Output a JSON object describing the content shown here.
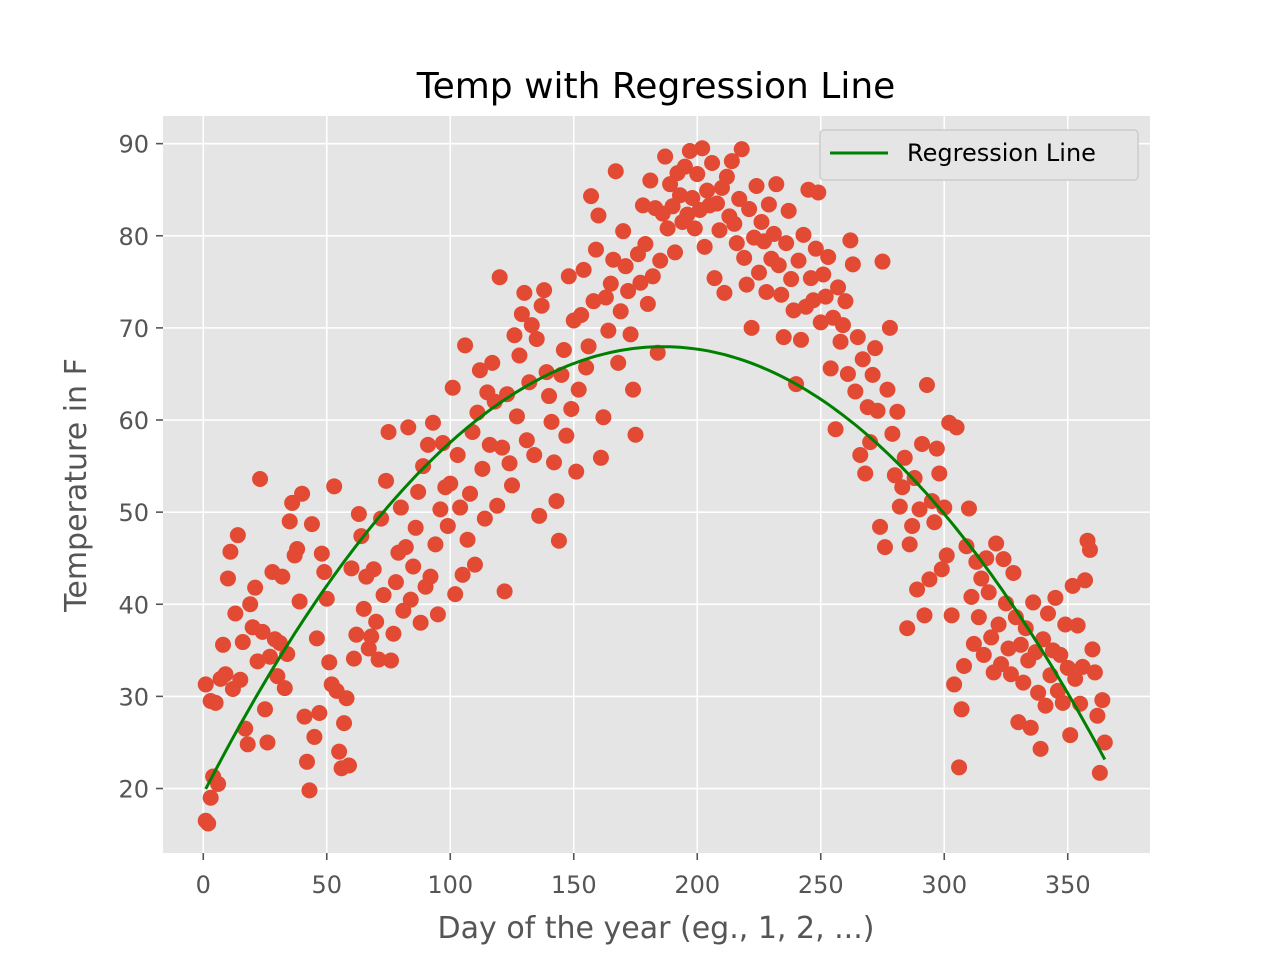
{
  "chart_data": {
    "type": "scatter",
    "title": "Temp with Regression Line",
    "xlabel": "Day of the year (eg., 1, 2, ...)",
    "ylabel": "Temperature in F",
    "xlim": [
      -16.3,
      383.3
    ],
    "ylim": [
      13.0,
      93.0
    ],
    "xticks": [
      0,
      50,
      100,
      150,
      200,
      250,
      300,
      350
    ],
    "yticks": [
      20,
      30,
      40,
      50,
      60,
      70,
      80,
      90
    ],
    "grid": true,
    "legend": {
      "position": "top-right",
      "entries": [
        "Regression Line"
      ]
    },
    "colors": {
      "points": "#E24A33",
      "regression": "#008000",
      "plot_background": "#E5E5E5",
      "grid": "#FFFFFF"
    },
    "regression": {
      "name": "Regression Line",
      "equation_coefficients": {
        "a": -0.0014006,
        "b": 0.52139,
        "c": 19.44
      },
      "x_range": [
        1,
        365
      ]
    },
    "scatter_points": [
      [
        1,
        31.3
      ],
      [
        1,
        16.5
      ],
      [
        2,
        16.2
      ],
      [
        3,
        29.5
      ],
      [
        3,
        19.0
      ],
      [
        4,
        21.3
      ],
      [
        5,
        29.3
      ],
      [
        6,
        20.5
      ],
      [
        7,
        31.9
      ],
      [
        8,
        35.6
      ],
      [
        9,
        32.4
      ],
      [
        10,
        42.8
      ],
      [
        11,
        45.7
      ],
      [
        12,
        30.8
      ],
      [
        13,
        39.0
      ],
      [
        14,
        47.5
      ],
      [
        15,
        31.8
      ],
      [
        16,
        35.9
      ],
      [
        17,
        26.5
      ],
      [
        18,
        24.8
      ],
      [
        19,
        40.0
      ],
      [
        20,
        37.5
      ],
      [
        21,
        41.8
      ],
      [
        22,
        33.8
      ],
      [
        23,
        53.6
      ],
      [
        24,
        37.0
      ],
      [
        25,
        28.6
      ],
      [
        26,
        25.0
      ],
      [
        27,
        34.3
      ],
      [
        28,
        43.5
      ],
      [
        29,
        36.2
      ],
      [
        30,
        32.2
      ],
      [
        31,
        35.8
      ],
      [
        32,
        43.0
      ],
      [
        33,
        30.9
      ],
      [
        34,
        34.6
      ],
      [
        35,
        49.0
      ],
      [
        36,
        51.0
      ],
      [
        37,
        45.3
      ],
      [
        38,
        46.0
      ],
      [
        39,
        40.3
      ],
      [
        40,
        52.0
      ],
      [
        41,
        27.8
      ],
      [
        42,
        22.9
      ],
      [
        43,
        19.8
      ],
      [
        44,
        48.7
      ],
      [
        45,
        25.6
      ],
      [
        46,
        36.3
      ],
      [
        47,
        28.2
      ],
      [
        48,
        45.5
      ],
      [
        49,
        43.5
      ],
      [
        50,
        40.6
      ],
      [
        51,
        33.7
      ],
      [
        52,
        31.3
      ],
      [
        53,
        52.8
      ],
      [
        54,
        30.6
      ],
      [
        55,
        24.0
      ],
      [
        56,
        22.2
      ],
      [
        57,
        27.1
      ],
      [
        58,
        29.8
      ],
      [
        59,
        22.5
      ],
      [
        60,
        43.9
      ],
      [
        61,
        34.1
      ],
      [
        62,
        36.7
      ],
      [
        63,
        49.8
      ],
      [
        64,
        47.4
      ],
      [
        65,
        39.5
      ],
      [
        66,
        43.0
      ],
      [
        67,
        35.2
      ],
      [
        68,
        36.5
      ],
      [
        69,
        43.8
      ],
      [
        70,
        38.1
      ],
      [
        71,
        34.0
      ],
      [
        72,
        49.3
      ],
      [
        73,
        41.0
      ],
      [
        74,
        53.4
      ],
      [
        75,
        58.7
      ],
      [
        76,
        33.9
      ],
      [
        77,
        36.8
      ],
      [
        78,
        42.4
      ],
      [
        79,
        45.6
      ],
      [
        80,
        50.5
      ],
      [
        81,
        39.3
      ],
      [
        82,
        46.2
      ],
      [
        83,
        59.2
      ],
      [
        84,
        40.5
      ],
      [
        85,
        44.1
      ],
      [
        86,
        48.3
      ],
      [
        87,
        52.2
      ],
      [
        88,
        38.0
      ],
      [
        89,
        55.0
      ],
      [
        90,
        41.9
      ],
      [
        91,
        57.3
      ],
      [
        92,
        43.0
      ],
      [
        93,
        59.7
      ],
      [
        94,
        46.5
      ],
      [
        95,
        38.9
      ],
      [
        96,
        50.3
      ],
      [
        97,
        57.5
      ],
      [
        98,
        52.7
      ],
      [
        99,
        48.5
      ],
      [
        100,
        53.1
      ],
      [
        101,
        63.5
      ],
      [
        102,
        41.1
      ],
      [
        103,
        56.2
      ],
      [
        104,
        50.5
      ],
      [
        105,
        43.2
      ],
      [
        106,
        68.1
      ],
      [
        107,
        47.0
      ],
      [
        108,
        52.0
      ],
      [
        109,
        58.7
      ],
      [
        110,
        44.3
      ],
      [
        111,
        60.8
      ],
      [
        112,
        65.4
      ],
      [
        113,
        54.7
      ],
      [
        114,
        49.3
      ],
      [
        115,
        63.0
      ],
      [
        116,
        57.3
      ],
      [
        117,
        66.2
      ],
      [
        118,
        62.0
      ],
      [
        119,
        50.7
      ],
      [
        120,
        75.5
      ],
      [
        121,
        57.0
      ],
      [
        122,
        41.4
      ],
      [
        123,
        62.8
      ],
      [
        124,
        55.3
      ],
      [
        125,
        52.9
      ],
      [
        126,
        69.2
      ],
      [
        127,
        60.4
      ],
      [
        128,
        67.0
      ],
      [
        129,
        71.5
      ],
      [
        130,
        73.8
      ],
      [
        131,
        57.8
      ],
      [
        132,
        64.1
      ],
      [
        133,
        70.3
      ],
      [
        134,
        56.2
      ],
      [
        135,
        68.8
      ],
      [
        136,
        49.6
      ],
      [
        137,
        72.4
      ],
      [
        138,
        74.1
      ],
      [
        139,
        65.2
      ],
      [
        140,
        62.6
      ],
      [
        141,
        59.8
      ],
      [
        142,
        55.4
      ],
      [
        143,
        51.2
      ],
      [
        144,
        46.9
      ],
      [
        145,
        64.9
      ],
      [
        146,
        67.6
      ],
      [
        147,
        58.3
      ],
      [
        148,
        75.6
      ],
      [
        149,
        61.2
      ],
      [
        150,
        70.8
      ],
      [
        151,
        54.4
      ],
      [
        152,
        63.3
      ],
      [
        153,
        71.4
      ],
      [
        154,
        76.3
      ],
      [
        155,
        65.7
      ],
      [
        156,
        68.0
      ],
      [
        157,
        84.3
      ],
      [
        158,
        72.9
      ],
      [
        159,
        78.5
      ],
      [
        160,
        82.2
      ],
      [
        161,
        55.9
      ],
      [
        162,
        60.3
      ],
      [
        163,
        73.3
      ],
      [
        164,
        69.7
      ],
      [
        165,
        74.8
      ],
      [
        166,
        77.4
      ],
      [
        167,
        87.0
      ],
      [
        168,
        66.2
      ],
      [
        169,
        71.8
      ],
      [
        170,
        80.5
      ],
      [
        171,
        76.7
      ],
      [
        172,
        74.0
      ],
      [
        173,
        69.3
      ],
      [
        174,
        63.3
      ],
      [
        175,
        58.4
      ],
      [
        176,
        78.0
      ],
      [
        177,
        74.9
      ],
      [
        178,
        83.3
      ],
      [
        179,
        79.1
      ],
      [
        180,
        72.6
      ],
      [
        181,
        86.0
      ],
      [
        182,
        75.6
      ],
      [
        183,
        83.0
      ],
      [
        184,
        67.3
      ],
      [
        185,
        77.3
      ],
      [
        186,
        82.4
      ],
      [
        187,
        88.6
      ],
      [
        188,
        80.8
      ],
      [
        189,
        85.6
      ],
      [
        190,
        83.2
      ],
      [
        191,
        78.2
      ],
      [
        192,
        86.8
      ],
      [
        193,
        84.4
      ],
      [
        194,
        81.5
      ],
      [
        195,
        87.5
      ],
      [
        196,
        82.3
      ],
      [
        197,
        89.2
      ],
      [
        198,
        84.1
      ],
      [
        199,
        80.8
      ],
      [
        200,
        86.7
      ],
      [
        201,
        82.8
      ],
      [
        202,
        89.5
      ],
      [
        203,
        78.8
      ],
      [
        204,
        84.9
      ],
      [
        205,
        83.3
      ],
      [
        206,
        87.9
      ],
      [
        207,
        75.4
      ],
      [
        208,
        83.5
      ],
      [
        209,
        80.6
      ],
      [
        210,
        85.2
      ],
      [
        211,
        73.8
      ],
      [
        212,
        86.4
      ],
      [
        213,
        82.1
      ],
      [
        214,
        88.1
      ],
      [
        215,
        81.3
      ],
      [
        216,
        79.2
      ],
      [
        217,
        84.0
      ],
      [
        218,
        89.4
      ],
      [
        219,
        77.6
      ],
      [
        220,
        74.7
      ],
      [
        221,
        82.9
      ],
      [
        222,
        70.0
      ],
      [
        223,
        79.8
      ],
      [
        224,
        85.4
      ],
      [
        225,
        76.0
      ],
      [
        226,
        81.5
      ],
      [
        227,
        79.4
      ],
      [
        228,
        73.9
      ],
      [
        229,
        83.4
      ],
      [
        230,
        77.5
      ],
      [
        231,
        80.2
      ],
      [
        232,
        85.6
      ],
      [
        233,
        76.8
      ],
      [
        234,
        73.6
      ],
      [
        235,
        69.0
      ],
      [
        236,
        79.2
      ],
      [
        237,
        82.7
      ],
      [
        238,
        75.3
      ],
      [
        239,
        71.9
      ],
      [
        240,
        63.9
      ],
      [
        241,
        77.3
      ],
      [
        242,
        68.7
      ],
      [
        243,
        80.1
      ],
      [
        244,
        72.3
      ],
      [
        245,
        85.0
      ],
      [
        246,
        75.4
      ],
      [
        247,
        73.0
      ],
      [
        248,
        78.6
      ],
      [
        249,
        84.7
      ],
      [
        250,
        70.6
      ],
      [
        251,
        75.8
      ],
      [
        252,
        73.4
      ],
      [
        253,
        77.7
      ],
      [
        254,
        65.6
      ],
      [
        255,
        71.1
      ],
      [
        256,
        59.0
      ],
      [
        257,
        74.4
      ],
      [
        258,
        68.5
      ],
      [
        259,
        70.3
      ],
      [
        260,
        72.9
      ],
      [
        261,
        65.0
      ],
      [
        262,
        79.5
      ],
      [
        263,
        76.9
      ],
      [
        264,
        63.1
      ],
      [
        265,
        69.0
      ],
      [
        266,
        56.2
      ],
      [
        267,
        66.6
      ],
      [
        268,
        54.2
      ],
      [
        269,
        61.4
      ],
      [
        270,
        57.6
      ],
      [
        271,
        64.9
      ],
      [
        272,
        67.8
      ],
      [
        273,
        61.0
      ],
      [
        274,
        48.4
      ],
      [
        275,
        77.2
      ],
      [
        276,
        46.2
      ],
      [
        277,
        63.3
      ],
      [
        278,
        70.0
      ],
      [
        279,
        58.5
      ],
      [
        280,
        54.0
      ],
      [
        281,
        60.9
      ],
      [
        282,
        50.6
      ],
      [
        283,
        52.7
      ],
      [
        284,
        55.9
      ],
      [
        285,
        37.4
      ],
      [
        286,
        46.5
      ],
      [
        287,
        48.5
      ],
      [
        288,
        53.7
      ],
      [
        289,
        41.6
      ],
      [
        290,
        50.3
      ],
      [
        291,
        57.4
      ],
      [
        292,
        38.8
      ],
      [
        293,
        63.8
      ],
      [
        294,
        42.7
      ],
      [
        295,
        51.2
      ],
      [
        296,
        48.9
      ],
      [
        297,
        56.9
      ],
      [
        298,
        54.2
      ],
      [
        299,
        43.8
      ],
      [
        300,
        50.5
      ],
      [
        301,
        45.3
      ],
      [
        302,
        59.7
      ],
      [
        303,
        38.8
      ],
      [
        304,
        31.3
      ],
      [
        305,
        59.2
      ],
      [
        306,
        22.3
      ],
      [
        307,
        28.6
      ],
      [
        308,
        33.3
      ],
      [
        309,
        46.3
      ],
      [
        310,
        50.4
      ],
      [
        311,
        40.8
      ],
      [
        312,
        35.7
      ],
      [
        313,
        44.6
      ],
      [
        314,
        38.6
      ],
      [
        315,
        42.8
      ],
      [
        316,
        34.5
      ],
      [
        317,
        45.0
      ],
      [
        318,
        41.3
      ],
      [
        319,
        36.4
      ],
      [
        320,
        32.6
      ],
      [
        321,
        46.6
      ],
      [
        322,
        37.8
      ],
      [
        323,
        33.5
      ],
      [
        324,
        44.9
      ],
      [
        325,
        40.1
      ],
      [
        326,
        35.2
      ],
      [
        327,
        32.4
      ],
      [
        328,
        43.4
      ],
      [
        329,
        38.6
      ],
      [
        330,
        27.2
      ],
      [
        331,
        35.6
      ],
      [
        332,
        31.5
      ],
      [
        333,
        37.4
      ],
      [
        334,
        33.9
      ],
      [
        335,
        26.6
      ],
      [
        336,
        40.2
      ],
      [
        337,
        34.8
      ],
      [
        338,
        30.4
      ],
      [
        339,
        24.3
      ],
      [
        340,
        36.2
      ],
      [
        341,
        29.0
      ],
      [
        342,
        39.0
      ],
      [
        343,
        32.3
      ],
      [
        344,
        35.0
      ],
      [
        345,
        40.7
      ],
      [
        346,
        30.6
      ],
      [
        347,
        34.5
      ],
      [
        348,
        29.3
      ],
      [
        349,
        37.8
      ],
      [
        350,
        33.1
      ],
      [
        351,
        25.8
      ],
      [
        352,
        42.0
      ],
      [
        353,
        31.9
      ],
      [
        354,
        37.7
      ],
      [
        355,
        29.2
      ],
      [
        356,
        33.2
      ],
      [
        357,
        42.6
      ],
      [
        358,
        46.9
      ],
      [
        359,
        45.9
      ],
      [
        360,
        35.1
      ],
      [
        361,
        32.6
      ],
      [
        362,
        27.9
      ],
      [
        363,
        21.7
      ],
      [
        364,
        29.6
      ],
      [
        365,
        25.0
      ]
    ]
  }
}
